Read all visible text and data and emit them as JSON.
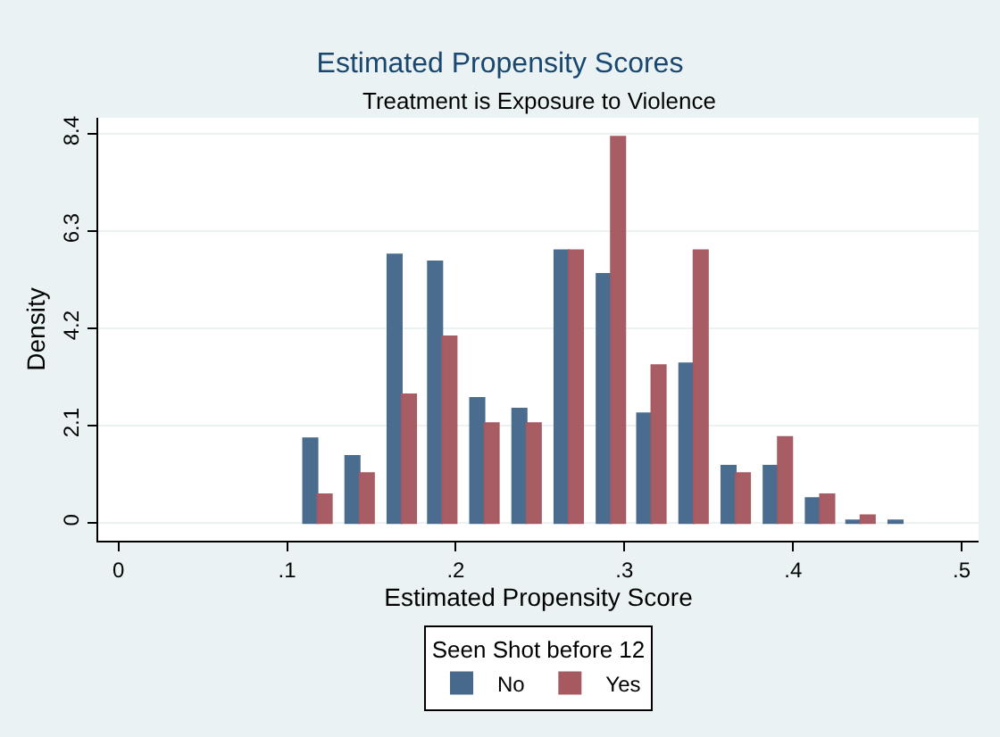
{
  "chart_data": {
    "type": "bar",
    "title": "Estimated Propensity Scores",
    "subtitle": "Treatment is Exposure to Violence",
    "xlabel": "Estimated Propensity Score",
    "ylabel": "Density",
    "legend_title": "Seen Shot before 12",
    "x": [
      0.118,
      0.143,
      0.168,
      0.192,
      0.217,
      0.242,
      0.267,
      0.292,
      0.316,
      0.341,
      0.366,
      0.391,
      0.416,
      0.44,
      0.465
    ],
    "series": [
      {
        "name": "No",
        "color": "#476a8c",
        "values": [
          1.83,
          1.45,
          5.8,
          5.65,
          2.7,
          2.47,
          5.89,
          5.38,
          2.37,
          3.45,
          1.24,
          1.24,
          0.54,
          0.06,
          0.06
        ]
      },
      {
        "name": "Yes",
        "color": "#a65a60",
        "values": [
          0.62,
          1.08,
          2.78,
          4.03,
          2.16,
          2.16,
          5.89,
          8.34,
          3.41,
          5.89,
          1.08,
          1.86,
          0.62,
          0.17,
          null
        ]
      }
    ],
    "xlim": [
      -0.012,
      0.51
    ],
    "xticks": [
      0,
      {
        "value": 0.1,
        "label": ".1"
      },
      {
        "value": 0.2,
        "label": ".2"
      },
      {
        "value": 0.3,
        "label": ".3"
      },
      {
        "value": 0.4,
        "label": ".4"
      },
      {
        "value": 0.5,
        "label": ".5"
      }
    ],
    "ylim": [
      -0.38,
      8.75
    ],
    "yticks": [
      0,
      2.1,
      4.2,
      6.3,
      8.4
    ],
    "grid": "y",
    "legend": "bottom"
  }
}
